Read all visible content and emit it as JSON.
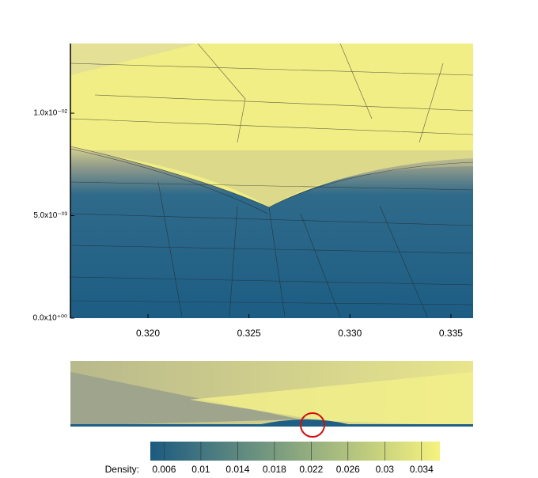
{
  "chart_data": {
    "type": "contour",
    "xlim": [
      0.31616,
      0.3361
    ],
    "ylim": [
      0,
      0.0134
    ],
    "xticks": [
      {
        "value": 0.32,
        "label": "0.320"
      },
      {
        "value": 0.325,
        "label": "0.325"
      },
      {
        "value": 0.33,
        "label": "0.330"
      },
      {
        "value": 0.335,
        "label": "0.335"
      }
    ],
    "yticks": [
      {
        "value": 0,
        "label": "0.0x10⁺⁰⁰"
      },
      {
        "value": 0.005,
        "label": "5.0x10⁻⁰³"
      },
      {
        "value": 0.01,
        "label": "1.0x10⁻⁰²"
      }
    ],
    "colorbar": {
      "label": "Density:",
      "lim": [
        0.0045,
        0.036
      ],
      "ticks": [
        0.006,
        {
          "value": 0.01,
          "label": "0.01"
        },
        0.014,
        0.018,
        0.022,
        0.026,
        {
          "value": 0.03,
          "label": "0.03"
        },
        0.034
      ],
      "colors": [
        "#1b5a80",
        "#f6f27e"
      ]
    }
  }
}
